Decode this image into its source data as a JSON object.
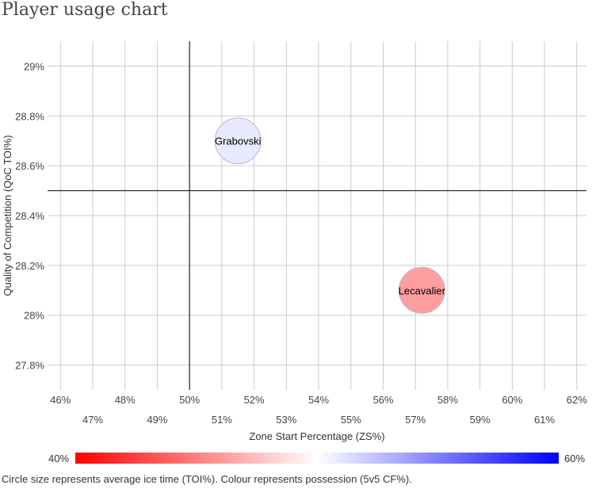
{
  "page": {
    "title": "Player usage chart"
  },
  "chart_data": {
    "type": "scatter",
    "title": "Player usage chart",
    "xlabel": "Zone Start Percentage (ZS%)",
    "ylabel": "Quality of Competition (QoC TOI%)",
    "xlim": [
      45.6,
      62.3
    ],
    "ylim": [
      27.7,
      29.1
    ],
    "x_ticks": [
      46,
      47,
      48,
      49,
      50,
      51,
      52,
      53,
      54,
      55,
      56,
      57,
      58,
      59,
      60,
      61,
      62
    ],
    "x_tick_labels": [
      "46%",
      "47%",
      "48%",
      "49%",
      "50%",
      "51%",
      "52%",
      "53%",
      "54%",
      "55%",
      "56%",
      "57%",
      "58%",
      "59%",
      "60%",
      "61%",
      "62%"
    ],
    "y_ticks": [
      27.8,
      28.0,
      28.2,
      28.4,
      28.6,
      28.8,
      29.0
    ],
    "y_tick_labels": [
      "27.8%",
      "28%",
      "28.2%",
      "28.4%",
      "28.6%",
      "28.8%",
      "29%"
    ],
    "x_reference": 50,
    "y_reference": 28.5,
    "grid": true,
    "points": [
      {
        "name": "Grabovski",
        "x": 51.5,
        "y": 28.7,
        "color": "#e8e8fd"
      },
      {
        "name": "Lecavalier",
        "x": 57.2,
        "y": 28.1,
        "color": "#ff9a9a"
      }
    ]
  },
  "legend": {
    "min_label": "40%",
    "max_label": "60%",
    "colors": {
      "low": "#ff0000",
      "mid": "#ffffff",
      "high": "#0000ff"
    }
  },
  "caption": "Circle size represents average ice time (TOI%). Colour represents possession (5v5 CF%)."
}
